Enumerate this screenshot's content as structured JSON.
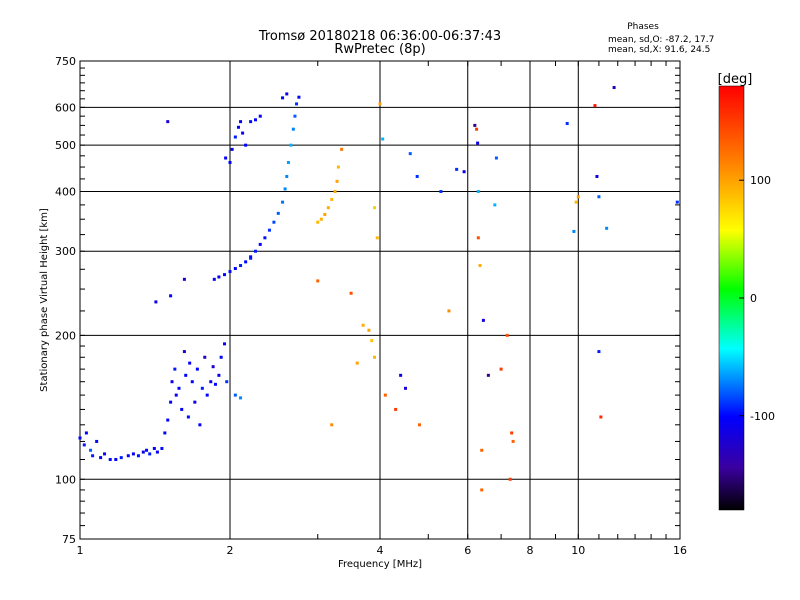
{
  "header": {
    "title_line1": "Tromsø 20180218 06:36:00-06:37:43",
    "title_line2": "RwPretec (8p)"
  },
  "stats": {
    "heading": "Phases",
    "line_o": "mean, sd,O: -87.2, 17.7",
    "line_x": "mean, sd,X:  91.6, 24.5"
  },
  "colorbar": {
    "unit_label": "[deg]",
    "ticks": [
      {
        "label": "100",
        "value": 100
      },
      {
        "label": "0",
        "value": 0
      },
      {
        "label": "-100",
        "value": -100
      }
    ],
    "range": [
      -180,
      180
    ]
  },
  "chart_data": {
    "type": "scatter",
    "xlabel": "Frequency [MHz]",
    "ylabel": "Stationary phase Virtual Height [km]",
    "xscale": "log",
    "yscale": "log",
    "xlim": [
      1,
      16
    ],
    "ylim": [
      75,
      750
    ],
    "xticks": [
      {
        "label": "1",
        "value": 1
      },
      {
        "label": "2",
        "value": 2
      },
      {
        "label": "4",
        "value": 4
      },
      {
        "label": "6",
        "value": 6
      },
      {
        "label": "8",
        "value": 8
      },
      {
        "label": "10",
        "value": 10
      },
      {
        "label": "16",
        "value": 16
      }
    ],
    "yticks": [
      {
        "label": "75",
        "value": 75
      },
      {
        "label": "100",
        "value": 100
      },
      {
        "label": "200",
        "value": 200
      },
      {
        "label": "300",
        "value": 300
      },
      {
        "label": "400",
        "value": 400
      },
      {
        "label": "500",
        "value": 500
      },
      {
        "label": "600",
        "value": 600
      },
      {
        "label": "750",
        "value": 750
      }
    ],
    "vertical_grid": [
      2,
      4,
      6,
      8,
      10,
      16
    ],
    "horizontal_grid": [
      100,
      200,
      300,
      400,
      500,
      600,
      750
    ],
    "color_encoding": "phase [deg]",
    "series": [
      {
        "points": [
          [
            1.0,
            122,
            -100
          ],
          [
            1.02,
            118,
            -95
          ],
          [
            1.03,
            125,
            -100
          ],
          [
            1.05,
            115,
            -80
          ],
          [
            1.06,
            112,
            -95
          ],
          [
            1.08,
            120,
            -100
          ],
          [
            1.1,
            111,
            -105
          ],
          [
            1.12,
            113,
            -100
          ],
          [
            1.15,
            110,
            -98
          ],
          [
            1.18,
            110,
            -102
          ],
          [
            1.21,
            111,
            -95
          ],
          [
            1.25,
            112,
            -100
          ],
          [
            1.28,
            113,
            -105
          ],
          [
            1.31,
            112,
            -97
          ],
          [
            1.34,
            114,
            -110
          ],
          [
            1.36,
            115,
            -100
          ],
          [
            1.38,
            113,
            -95
          ],
          [
            1.41,
            116,
            -100
          ],
          [
            1.43,
            114,
            -105
          ],
          [
            1.46,
            116,
            -98
          ],
          [
            1.48,
            125,
            -100
          ],
          [
            1.5,
            133,
            -105
          ],
          [
            1.52,
            145,
            -100
          ],
          [
            1.53,
            160,
            -110
          ],
          [
            1.55,
            170,
            -95
          ],
          [
            1.56,
            150,
            -105
          ],
          [
            1.58,
            155,
            -100
          ],
          [
            1.6,
            140,
            -105
          ],
          [
            1.62,
            185,
            -120
          ],
          [
            1.63,
            165,
            -100
          ],
          [
            1.65,
            135,
            -98
          ],
          [
            1.66,
            175,
            -105
          ],
          [
            1.68,
            160,
            -100
          ],
          [
            1.7,
            145,
            -110
          ],
          [
            1.72,
            170,
            -100
          ],
          [
            1.74,
            130,
            -105
          ],
          [
            1.76,
            155,
            -95
          ],
          [
            1.78,
            180,
            -130
          ],
          [
            1.8,
            150,
            -100
          ],
          [
            1.83,
            160,
            -105
          ],
          [
            1.85,
            172,
            -120
          ],
          [
            1.87,
            158,
            -98
          ],
          [
            1.9,
            165,
            -105
          ],
          [
            1.92,
            180,
            -100
          ],
          [
            1.95,
            192,
            -110
          ],
          [
            1.97,
            160,
            -90
          ],
          [
            2.05,
            150,
            -80
          ],
          [
            2.1,
            148,
            -70
          ],
          [
            1.86,
            262,
            -100
          ],
          [
            1.9,
            265,
            -105
          ],
          [
            1.95,
            268,
            -100
          ],
          [
            2.0,
            272,
            -98
          ],
          [
            2.05,
            276,
            -102
          ],
          [
            2.1,
            280,
            -95
          ],
          [
            2.15,
            285,
            -100
          ],
          [
            2.2,
            292,
            -105
          ],
          [
            2.25,
            300,
            -95
          ],
          [
            2.3,
            310,
            -100
          ],
          [
            2.35,
            320,
            -98
          ],
          [
            2.4,
            332,
            -90
          ],
          [
            2.45,
            345,
            -85
          ],
          [
            2.5,
            360,
            -80
          ],
          [
            2.55,
            380,
            -75
          ],
          [
            2.58,
            405,
            -70
          ],
          [
            2.6,
            430,
            -70
          ],
          [
            2.62,
            460,
            -65
          ],
          [
            2.65,
            500,
            -60
          ],
          [
            2.68,
            540,
            -70
          ],
          [
            2.7,
            575,
            -80
          ],
          [
            2.72,
            610,
            -90
          ],
          [
            2.75,
            630,
            -100
          ],
          [
            2.6,
            640,
            -110
          ],
          [
            2.55,
            628,
            -100
          ],
          [
            2.0,
            460,
            -100
          ],
          [
            1.96,
            470,
            -105
          ],
          [
            2.02,
            490,
            -100
          ],
          [
            2.05,
            520,
            -95
          ],
          [
            2.08,
            545,
            -100
          ],
          [
            2.1,
            560,
            -110
          ],
          [
            2.12,
            530,
            -105
          ],
          [
            2.15,
            500,
            -100
          ],
          [
            2.2,
            560,
            -98
          ],
          [
            2.25,
            565,
            -100
          ],
          [
            2.3,
            575,
            -105
          ],
          [
            1.5,
            560,
            -120
          ],
          [
            1.42,
            235,
            -110
          ],
          [
            1.52,
            242,
            -100
          ],
          [
            1.62,
            262,
            -120
          ],
          [
            2.2,
            290,
            -95
          ],
          [
            3.0,
            345,
            90
          ],
          [
            3.05,
            350,
            95
          ],
          [
            3.1,
            358,
            100
          ],
          [
            3.15,
            370,
            95
          ],
          [
            3.2,
            385,
            90
          ],
          [
            3.25,
            400,
            95
          ],
          [
            3.28,
            420,
            100
          ],
          [
            3.3,
            450,
            90
          ],
          [
            3.35,
            490,
            120
          ],
          [
            3.0,
            260,
            130
          ],
          [
            3.2,
            130,
            110
          ],
          [
            3.5,
            245,
            140
          ],
          [
            3.6,
            175,
            100
          ],
          [
            3.7,
            210,
            95
          ],
          [
            3.8,
            205,
            100
          ],
          [
            3.85,
            195,
            85
          ],
          [
            3.9,
            180,
            90
          ],
          [
            3.95,
            320,
            90
          ],
          [
            4.0,
            610,
            100
          ],
          [
            4.05,
            515,
            -60
          ],
          [
            3.9,
            370,
            80
          ],
          [
            4.1,
            150,
            130
          ],
          [
            4.3,
            140,
            150
          ],
          [
            4.4,
            165,
            -110
          ],
          [
            4.5,
            155,
            -120
          ],
          [
            4.6,
            480,
            -80
          ],
          [
            4.75,
            430,
            -90
          ],
          [
            4.8,
            130,
            130
          ],
          [
            5.3,
            400,
            -90
          ],
          [
            5.5,
            225,
            110
          ],
          [
            5.7,
            445,
            -90
          ],
          [
            5.9,
            440,
            -110
          ],
          [
            6.2,
            550,
            -150
          ],
          [
            6.25,
            540,
            150
          ],
          [
            6.28,
            505,
            -110
          ],
          [
            6.3,
            320,
            140
          ],
          [
            6.3,
            400,
            -60
          ],
          [
            6.35,
            280,
            95
          ],
          [
            6.4,
            115,
            130
          ],
          [
            6.4,
            95,
            130
          ],
          [
            6.45,
            215,
            -115
          ],
          [
            6.6,
            165,
            -150
          ],
          [
            6.8,
            375,
            -60
          ],
          [
            6.85,
            470,
            -80
          ],
          [
            7.0,
            170,
            150
          ],
          [
            7.2,
            200,
            140
          ],
          [
            7.3,
            100,
            150
          ],
          [
            7.35,
            125,
            150
          ],
          [
            7.4,
            120,
            130
          ],
          [
            9.5,
            555,
            -90
          ],
          [
            9.8,
            330,
            -70
          ],
          [
            9.9,
            380,
            90
          ],
          [
            10.0,
            390,
            100
          ],
          [
            10.8,
            605,
            170
          ],
          [
            10.9,
            430,
            -110
          ],
          [
            11.0,
            390,
            -80
          ],
          [
            11.0,
            185,
            -95
          ],
          [
            11.1,
            135,
            160
          ],
          [
            11.4,
            335,
            -70
          ],
          [
            11.8,
            660,
            -130
          ],
          [
            15.8,
            380,
            -90
          ]
        ]
      }
    ]
  }
}
